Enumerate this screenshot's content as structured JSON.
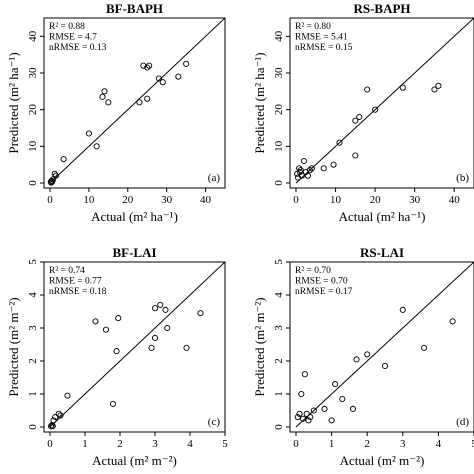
{
  "chart_data": [
    {
      "id": "bf-baph",
      "type": "scatter",
      "title": "BF-BAPH",
      "xlabel": "Actual (m² ha⁻¹)",
      "ylabel": "Predicted (m² ha⁻¹)",
      "xlim": [
        0,
        45
      ],
      "ylim": [
        0,
        45
      ],
      "xticks": [
        0,
        10,
        20,
        30,
        40
      ],
      "yticks": [
        0,
        10,
        20,
        30,
        40
      ],
      "stats": [
        "R² = 0.88",
        "RMSE = 4.7",
        "nRMSE = 0.13"
      ],
      "panel_tag": "(a)",
      "reference_line": "1:1",
      "points": [
        [
          0.2,
          0.3
        ],
        [
          0.4,
          0.6
        ],
        [
          0.3,
          0.1
        ],
        [
          0.6,
          0.4
        ],
        [
          0.8,
          1.0
        ],
        [
          1.2,
          2.5
        ],
        [
          1.5,
          2.0
        ],
        [
          3.5,
          6.5
        ],
        [
          10,
          13.5
        ],
        [
          12,
          10
        ],
        [
          13.5,
          23.5
        ],
        [
          14,
          25
        ],
        [
          15,
          22
        ],
        [
          23,
          22
        ],
        [
          24,
          32
        ],
        [
          25,
          31.5
        ],
        [
          25.5,
          32
        ],
        [
          25,
          23
        ],
        [
          28,
          28.5
        ],
        [
          29,
          27.5
        ],
        [
          33,
          29
        ],
        [
          35,
          32.5
        ]
      ]
    },
    {
      "id": "rs-baph",
      "type": "scatter",
      "title": "RS-BAPH",
      "xlabel": "Actual (m² ha⁻¹)",
      "ylabel": "Predicted (m² ha⁻¹)",
      "xlim": [
        0,
        45
      ],
      "ylim": [
        0,
        45
      ],
      "xticks": [
        0,
        10,
        20,
        30,
        40
      ],
      "yticks": [
        0,
        10,
        20,
        30,
        40
      ],
      "stats": [
        "R² = 0.80",
        "RMSE = 5.41",
        "nRMSE = 0.15"
      ],
      "panel_tag": "(b)",
      "reference_line": "1:1",
      "points": [
        [
          0.3,
          2.5
        ],
        [
          0.5,
          1.5
        ],
        [
          0.8,
          4
        ],
        [
          1,
          3
        ],
        [
          1.2,
          3.5
        ],
        [
          1.5,
          2
        ],
        [
          2,
          6
        ],
        [
          2.5,
          3
        ],
        [
          3,
          2
        ],
        [
          3.5,
          3.5
        ],
        [
          4,
          4
        ],
        [
          7,
          4
        ],
        [
          9.5,
          5
        ],
        [
          11,
          11
        ],
        [
          15,
          17
        ],
        [
          15,
          7.5
        ],
        [
          16,
          18
        ],
        [
          18,
          25.5
        ],
        [
          20,
          20
        ],
        [
          27,
          26
        ],
        [
          35,
          25.5
        ],
        [
          36,
          26.5
        ]
      ]
    },
    {
      "id": "bf-lai",
      "type": "scatter",
      "title": "BF-LAI",
      "xlabel": "Actual (m² m⁻²)",
      "ylabel": "Predicted (m² m⁻²)",
      "xlim": [
        0,
        5
      ],
      "ylim": [
        0,
        5
      ],
      "xticks": [
        0,
        1,
        2,
        3,
        4,
        5
      ],
      "yticks": [
        0,
        1,
        2,
        3,
        4,
        5
      ],
      "stats": [
        "R² = 0.74",
        "RMSE = 0.77",
        "nRMSE = 0.18"
      ],
      "panel_tag": "(c)",
      "reference_line": "1:1",
      "points": [
        [
          0.03,
          0.02
        ],
        [
          0.05,
          0.05
        ],
        [
          0.08,
          0.03
        ],
        [
          0.1,
          0.2
        ],
        [
          0.15,
          0.3
        ],
        [
          0.25,
          0.4
        ],
        [
          0.3,
          0.35
        ],
        [
          0.5,
          0.95
        ],
        [
          1.3,
          3.2
        ],
        [
          1.6,
          2.95
        ],
        [
          1.8,
          0.7
        ],
        [
          1.9,
          2.3
        ],
        [
          1.95,
          3.3
        ],
        [
          2.9,
          2.4
        ],
        [
          3.0,
          2.7
        ],
        [
          3.0,
          3.6
        ],
        [
          3.15,
          3.7
        ],
        [
          3.3,
          3.55
        ],
        [
          3.35,
          3.0
        ],
        [
          3.9,
          2.4
        ],
        [
          4.3,
          3.45
        ]
      ]
    },
    {
      "id": "rs-lai",
      "type": "scatter",
      "title": "RS-LAI",
      "xlabel": "Actual (m² m⁻²)",
      "ylabel": "Predicted (m² m⁻²)",
      "xlim": [
        0,
        5
      ],
      "ylim": [
        0,
        5
      ],
      "xticks": [
        0,
        1,
        2,
        3,
        4,
        5
      ],
      "yticks": [
        0,
        1,
        2,
        3,
        4,
        5
      ],
      "stats": [
        "R² = 0.70",
        "RMSE = 0.70",
        "nRMSE = 0.17"
      ],
      "panel_tag": "(d)",
      "reference_line": "1:1",
      "points": [
        [
          0.05,
          0.3
        ],
        [
          0.1,
          0.4
        ],
        [
          0.15,
          1.0
        ],
        [
          0.2,
          0.25
        ],
        [
          0.25,
          1.6
        ],
        [
          0.3,
          0.4
        ],
        [
          0.35,
          0.2
        ],
        [
          0.4,
          0.3
        ],
        [
          0.5,
          0.5
        ],
        [
          0.8,
          0.55
        ],
        [
          1.0,
          0.2
        ],
        [
          1.1,
          1.3
        ],
        [
          1.3,
          0.85
        ],
        [
          1.6,
          0.55
        ],
        [
          1.7,
          2.05
        ],
        [
          2.0,
          2.2
        ],
        [
          2.5,
          1.85
        ],
        [
          3.0,
          3.55
        ],
        [
          3.6,
          2.4
        ],
        [
          4.4,
          3.2
        ]
      ]
    }
  ]
}
